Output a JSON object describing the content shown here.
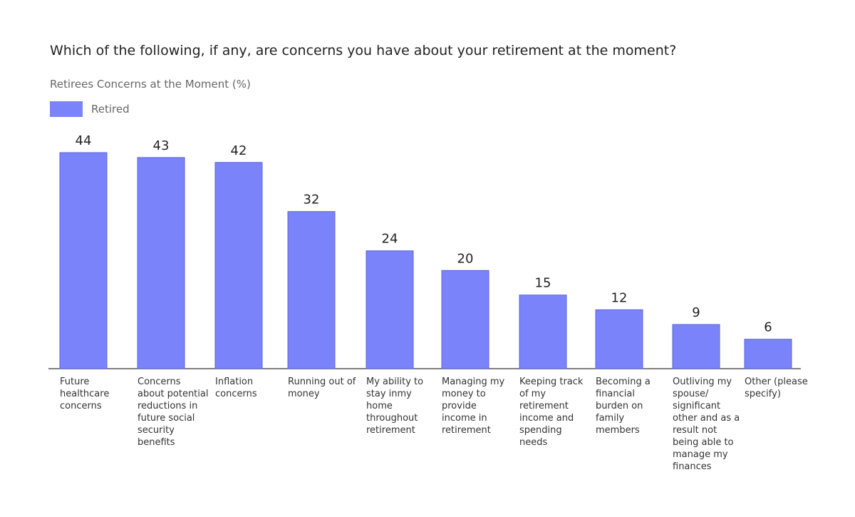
{
  "title": "Which of the following, if any, are concerns you have about your retirement at the moment?",
  "subtitle": "Retirees Concerns at the Moment (%)",
  "legend": {
    "label": "Retired",
    "color": "#7b83fb"
  },
  "chart_data": {
    "type": "bar",
    "title": "Which of the following, if any, are concerns you have about your retirement at the moment?",
    "subtitle": "Retirees Concerns at the Moment (%)",
    "categories": [
      "Future healthcare concerns",
      "Concerns about potential reductions in future social security benefits",
      "Inflation concerns",
      "Running out of money",
      "My ability to stay inmy home throughout retirement",
      "Managing my money to provide income in retirement",
      "Keeping track of my retirement income and spending needs",
      "Becoming a financial burden on family members",
      "Outliving my spouse/ significant other and as a result not being able to manage my finances",
      "Other (please specify)"
    ],
    "series": [
      {
        "name": "Retired",
        "values": [
          44,
          43,
          42,
          32,
          24,
          20,
          15,
          12,
          9,
          6
        ],
        "color": "#7b83fb"
      }
    ],
    "ylim": [
      0,
      44
    ],
    "grid": false,
    "legend_position": "top-left"
  }
}
